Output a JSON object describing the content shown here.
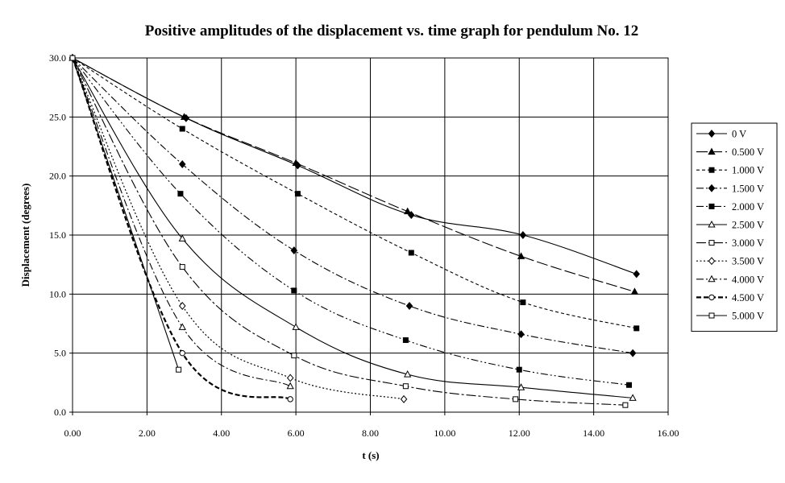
{
  "chart_data": {
    "type": "line",
    "title": "Positive amplitudes of the displacement vs. time graph for pendulum No. 12",
    "xlabel": "t (s)",
    "ylabel": "Displacement (degrees)",
    "xlim": [
      0,
      16
    ],
    "ylim": [
      0,
      30
    ],
    "x_ticks": [
      "0.00",
      "2.00",
      "4.00",
      "6.00",
      "8.00",
      "10.00",
      "12.00",
      "14.00",
      "16.00"
    ],
    "y_ticks": [
      "0.0",
      "5.0",
      "10.0",
      "15.0",
      "20.0",
      "25.0",
      "30.0"
    ],
    "grid": true,
    "legend_position": "right",
    "series": [
      {
        "name": "0 V",
        "marker": "diamond-filled",
        "dash": "solid",
        "points": [
          [
            0,
            30.0
          ],
          [
            3.05,
            24.9
          ],
          [
            6.05,
            20.9
          ],
          [
            9.1,
            16.7
          ],
          [
            12.1,
            15.0
          ],
          [
            15.15,
            11.7
          ]
        ]
      },
      {
        "name": "0.500 V",
        "marker": "triangle-filled",
        "dash": "long-dash",
        "points": [
          [
            0,
            30.0
          ],
          [
            3.0,
            25.0
          ],
          [
            6.0,
            21.1
          ],
          [
            9.0,
            17.0
          ],
          [
            12.05,
            13.2
          ],
          [
            15.1,
            10.2
          ]
        ]
      },
      {
        "name": "1.000 V",
        "marker": "square-filled",
        "dash": "short-dash",
        "points": [
          [
            0,
            30.0
          ],
          [
            2.95,
            24.0
          ],
          [
            6.05,
            18.5
          ],
          [
            9.1,
            13.5
          ],
          [
            12.1,
            9.3
          ],
          [
            15.15,
            7.1
          ]
        ]
      },
      {
        "name": "1.500 V",
        "marker": "diamond-filled",
        "dash": "dash-dot",
        "points": [
          [
            0,
            30.0
          ],
          [
            2.95,
            21.0
          ],
          [
            5.95,
            13.7
          ],
          [
            9.05,
            9.0
          ],
          [
            12.05,
            6.6
          ],
          [
            15.05,
            5.0
          ]
        ]
      },
      {
        "name": "2.000 V",
        "marker": "square-filled",
        "dash": "dash-dot-dot",
        "points": [
          [
            0,
            30.0
          ],
          [
            2.9,
            18.5
          ],
          [
            5.95,
            10.3
          ],
          [
            8.95,
            6.1
          ],
          [
            12.0,
            3.6
          ],
          [
            14.95,
            2.3
          ]
        ]
      },
      {
        "name": "2.500 V",
        "marker": "triangle-open",
        "dash": "solid",
        "points": [
          [
            0,
            30.0
          ],
          [
            2.95,
            14.7
          ],
          [
            6.0,
            7.2
          ],
          [
            9.0,
            3.2
          ],
          [
            12.05,
            2.1
          ],
          [
            15.05,
            1.2
          ]
        ]
      },
      {
        "name": "3.000 V",
        "marker": "square-open",
        "dash": "long-dash-dot",
        "points": [
          [
            0,
            30.0
          ],
          [
            2.95,
            12.3
          ],
          [
            5.95,
            4.8
          ],
          [
            8.95,
            2.2
          ],
          [
            11.9,
            1.1
          ],
          [
            14.85,
            0.6
          ]
        ]
      },
      {
        "name": "3.500 V",
        "marker": "diamond-open",
        "dash": "dotted",
        "points": [
          [
            0,
            30.0
          ],
          [
            2.95,
            9.0
          ],
          [
            5.85,
            2.9
          ],
          [
            8.9,
            1.1
          ]
        ]
      },
      {
        "name": "4.000 V",
        "marker": "triangle-open",
        "dash": "dash-dot",
        "points": [
          [
            0,
            30.0
          ],
          [
            2.95,
            7.2
          ],
          [
            5.85,
            2.2
          ]
        ]
      },
      {
        "name": "4.500 V",
        "marker": "circle-open",
        "dash": "bold-dash",
        "points": [
          [
            0,
            30.0
          ],
          [
            2.95,
            5.0
          ],
          [
            5.85,
            1.1
          ]
        ]
      },
      {
        "name": "5.000 V",
        "marker": "square-open",
        "dash": "solid",
        "points": [
          [
            0,
            30.0
          ],
          [
            2.85,
            3.6
          ]
        ]
      }
    ]
  }
}
